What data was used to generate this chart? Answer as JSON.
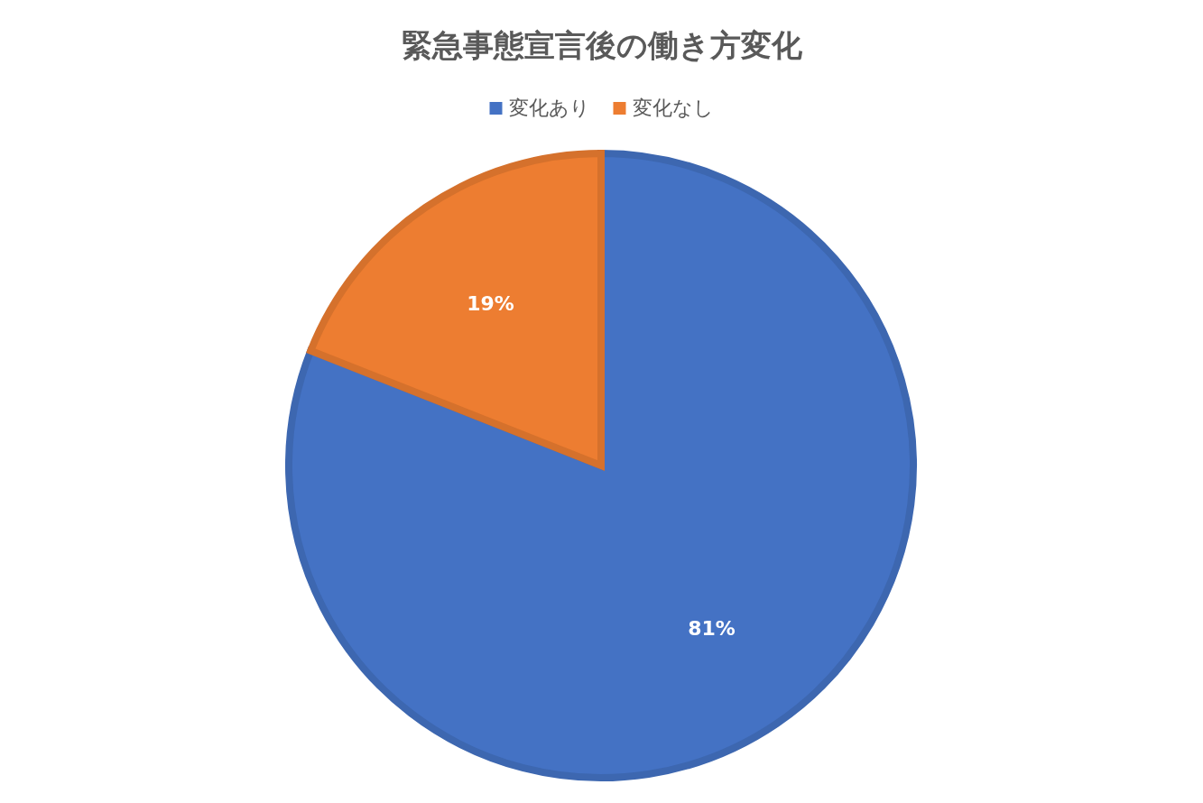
{
  "chart_data": {
    "type": "pie",
    "title": "緊急事態宣言後の働き方変化",
    "categories": [
      "変化あり",
      "変化なし"
    ],
    "values": [
      81,
      19
    ],
    "colors": [
      "#4472c4",
      "#ed7d31"
    ],
    "value_labels": [
      "81%",
      "19%"
    ],
    "legend": "top"
  }
}
